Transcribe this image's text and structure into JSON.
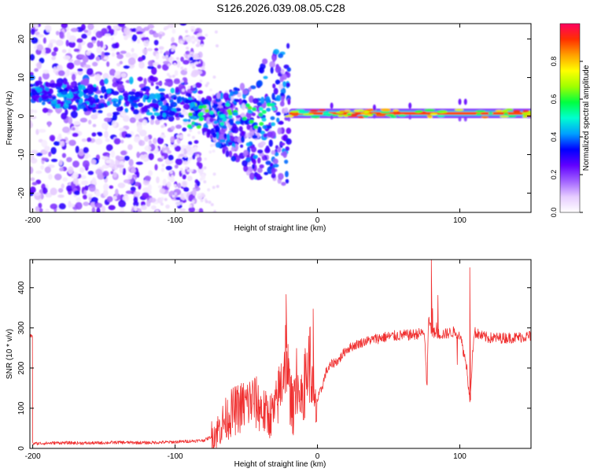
{
  "title": "S126.2026.039.08.05.C28",
  "chart_data": [
    {
      "type": "heatmap",
      "name": "spectrogram",
      "xlabel": "Height of straight line (km)",
      "ylabel": "Frequency (Hz)",
      "xlim": [
        -202,
        150
      ],
      "ylim": [
        -25,
        24
      ],
      "xticks": [
        -200,
        -100,
        0,
        100
      ],
      "yticks": [
        20,
        10,
        0,
        -10,
        -20
      ],
      "colorbar": {
        "label": "Normalized spectral amplitude",
        "range": [
          0,
          1
        ],
        "ticks": [
          0.0,
          0.2,
          0.4,
          0.6,
          0.8
        ],
        "colors": [
          "#ffffff",
          "#e6ccff",
          "#a060ff",
          "#6000ff",
          "#0000ff",
          "#00a0ff",
          "#00ffd0",
          "#00ff40",
          "#a0ff00",
          "#ffff00",
          "#ffa000",
          "#ff3000",
          "#ff0060"
        ]
      },
      "features": [
        {
          "region": "noise",
          "x": [
            -202,
            -80
          ],
          "freq": [
            -25,
            24
          ],
          "amplitude": 0.15
        },
        {
          "region": "transition",
          "x": [
            -80,
            -20
          ],
          "freq": [
            -23,
            16
          ],
          "amplitude": 0.3
        },
        {
          "region": "tone",
          "x": [
            -20,
            150
          ],
          "freq": 0.7,
          "amplitude": 0.9
        }
      ]
    },
    {
      "type": "line",
      "name": "snr",
      "xlabel": "Height of straight line (km)",
      "ylabel": "SNR (10 * v/v)",
      "xlim": [
        -202,
        150
      ],
      "ylim": [
        0,
        470
      ],
      "xticks": [
        -200,
        -100,
        0,
        100
      ],
      "yticks": [
        0,
        100,
        200,
        300,
        400
      ],
      "color": "#f03030",
      "x": [
        -200,
        -180,
        -160,
        -140,
        -120,
        -100,
        -90,
        -80,
        -75,
        -70,
        -65,
        -60,
        -55,
        -50,
        -45,
        -40,
        -35,
        -30,
        -25,
        -22,
        -20,
        -17,
        -15,
        -12,
        -10,
        -8,
        -5,
        -3,
        -1,
        0,
        3,
        6,
        10,
        15,
        20,
        25,
        30,
        35,
        40,
        45,
        50,
        55,
        60,
        65,
        70,
        75,
        77,
        78,
        80,
        85,
        90,
        95,
        100,
        105,
        107,
        110,
        115,
        120,
        130,
        140,
        150
      ],
      "values": [
        12,
        14,
        13,
        15,
        14,
        16,
        18,
        20,
        28,
        45,
        70,
        90,
        100,
        110,
        120,
        100,
        80,
        90,
        170,
        250,
        150,
        90,
        200,
        100,
        140,
        180,
        220,
        120,
        90,
        120,
        150,
        190,
        210,
        220,
        245,
        255,
        262,
        268,
        272,
        276,
        278,
        280,
        282,
        282,
        285,
        288,
        150,
        330,
        290,
        285,
        285,
        290,
        285,
        200,
        120,
        290,
        280,
        275,
        275,
        276,
        280
      ],
      "spikes": [
        {
          "x": -22,
          "y": 383
        },
        {
          "x": -3,
          "y": 347
        },
        {
          "x": 80,
          "y": 470
        },
        {
          "x": 107,
          "y": 450
        }
      ]
    }
  ]
}
